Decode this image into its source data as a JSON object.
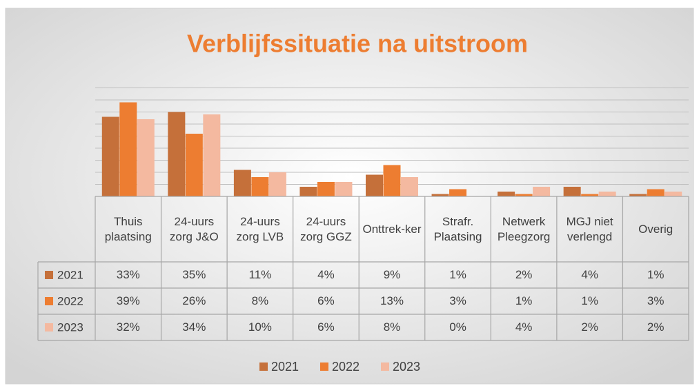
{
  "chart_data": {
    "type": "bar",
    "title": "Verblijfssituatie na uitstroom",
    "categories": [
      "Thuis plaatsing",
      "24-uurs zorg J&O",
      "24-uurs zorg LVB",
      "24-uurs zorg GGZ",
      "Onttrek-ker",
      "Strafr. Plaatsing",
      "Netwerk Pleegzorg",
      "MGJ niet verlengd",
      "Overig"
    ],
    "series": [
      {
        "name": "2021",
        "color": "#c5703a",
        "values": [
          33,
          35,
          11,
          4,
          9,
          1,
          2,
          4,
          1
        ],
        "value_labels": [
          "33%",
          "35%",
          "11%",
          "4%",
          "9%",
          "1%",
          "2%",
          "4%",
          "1%"
        ]
      },
      {
        "name": "2022",
        "color": "#ed7d31",
        "values": [
          39,
          26,
          8,
          6,
          13,
          3,
          1,
          1,
          3
        ],
        "value_labels": [
          "39%",
          "26%",
          "8%",
          "6%",
          "13%",
          "3%",
          "1%",
          "1%",
          "3%"
        ]
      },
      {
        "name": "2023",
        "color": "#f4b9a0",
        "values": [
          32,
          34,
          10,
          6,
          8,
          0,
          4,
          2,
          2
        ],
        "value_labels": [
          "32%",
          "34%",
          "10%",
          "6%",
          "8%",
          "0%",
          "4%",
          "2%",
          "2%"
        ]
      }
    ],
    "ylim": [
      0,
      45
    ],
    "yticks": [
      0,
      5,
      10,
      15,
      20,
      25,
      30,
      35,
      40,
      45
    ],
    "grid": true,
    "legend": "bottom"
  }
}
